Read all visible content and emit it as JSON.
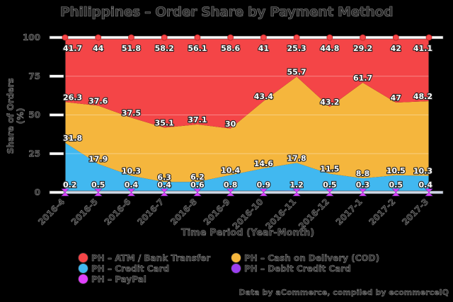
{
  "chart_data": {
    "type": "area",
    "stacked": true,
    "title": "Philippines – Order Share by Payment Method",
    "xlabel": "Time Period (Year-Month)",
    "ylabel": "Share of Orders (%)",
    "ylim": [
      0,
      100
    ],
    "yticks": [
      0,
      25,
      50,
      75,
      100
    ],
    "grid": true,
    "legend_position": "bottom",
    "categories": [
      "2016-4",
      "2016-5",
      "2016-6",
      "2016-7",
      "2016-8",
      "2016-9",
      "2016-10",
      "2016-11",
      "2016-12",
      "2017-1",
      "2017-2",
      "2017-3"
    ],
    "series": [
      {
        "name": "PH – PayPal",
        "color": "#e040fb",
        "values": [
          0.2,
          0.5,
          0.4,
          0.4,
          0.6,
          0.8,
          0.9,
          1.2,
          0.5,
          0.3,
          0.5,
          0.4
        ]
      },
      {
        "name": "PH – Debit Credit Card",
        "color": "#9b3ff0",
        "values": [
          0,
          0,
          0,
          0,
          0,
          0,
          0,
          0,
          0,
          0,
          0,
          0
        ]
      },
      {
        "name": "PH – Credit Card",
        "color": "#41b8f0",
        "values": [
          31.8,
          17.9,
          10.3,
          6.3,
          6.2,
          10.4,
          14.6,
          17.8,
          11.5,
          8.8,
          10.5,
          10.3
        ]
      },
      {
        "name": "PH – Cash on Delivery (COD)",
        "color": "#f5b63d",
        "values": [
          26.3,
          37.6,
          37.5,
          35.1,
          37.1,
          30,
          43.4,
          55.7,
          43.2,
          61.7,
          47,
          48.2
        ]
      },
      {
        "name": "PH – ATM / Bank Transfer",
        "color": "#f44547",
        "values": [
          41.7,
          44,
          51.8,
          58.2,
          56.1,
          58.6,
          41,
          25.3,
          44.8,
          29.2,
          42,
          41.1
        ]
      }
    ]
  },
  "title": "Philippines – Order Share by Payment Method",
  "axes": {
    "xlabel": "Time Period (Year-Month)",
    "ylabel": "Share of Orders (%)"
  },
  "legend": [
    {
      "label": "PH – ATM / Bank Transfer",
      "color": "#f44547"
    },
    {
      "label": "PH – Cash on Delivery (COD)",
      "color": "#f5b63d"
    },
    {
      "label": "PH – Credit Card",
      "color": "#41b8f0"
    },
    {
      "label": "PH – Debit Credit Card",
      "color": "#9b3ff0"
    },
    {
      "label": "PH – PayPal",
      "color": "#e040fb"
    }
  ],
  "source": "Data by aCommerce, compiled by ecommerceIQ"
}
